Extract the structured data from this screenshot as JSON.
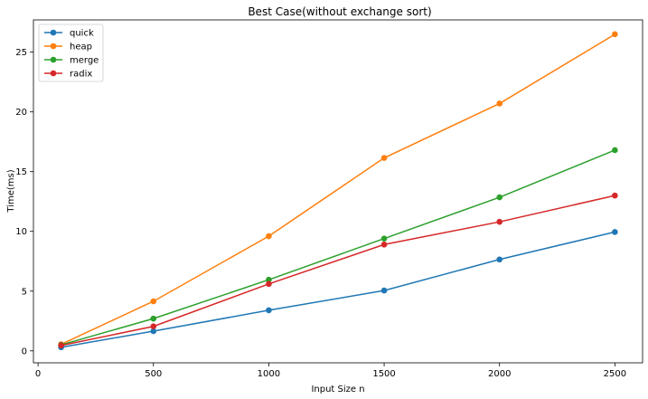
{
  "chart_data": {
    "type": "line",
    "title": "Best Case(without exchange sort)",
    "xlabel": "Input Size n",
    "ylabel": "Time(ms)",
    "x": [
      100,
      500,
      1000,
      1500,
      2000,
      2500
    ],
    "xlim": [
      -20,
      2620
    ],
    "ylim": [
      -1.0,
      27.7
    ],
    "xticks": [
      0,
      500,
      1000,
      1500,
      2000,
      2500
    ],
    "yticks": [
      0,
      5,
      10,
      15,
      20,
      25
    ],
    "grid": false,
    "legend_position": "top-left",
    "series": [
      {
        "name": "quick",
        "color": "#1f77b4",
        "values": [
          0.3,
          1.65,
          3.4,
          5.05,
          7.65,
          9.95
        ]
      },
      {
        "name": "heap",
        "color": "#ff7f0e",
        "values": [
          0.55,
          4.15,
          9.6,
          16.15,
          20.7,
          26.5
        ]
      },
      {
        "name": "merge",
        "color": "#2ca02c",
        "values": [
          0.5,
          2.7,
          5.95,
          9.4,
          12.85,
          16.8
        ]
      },
      {
        "name": "radix",
        "color": "#d62728",
        "values": [
          0.45,
          2.05,
          5.6,
          8.9,
          10.8,
          13.0
        ]
      }
    ]
  }
}
